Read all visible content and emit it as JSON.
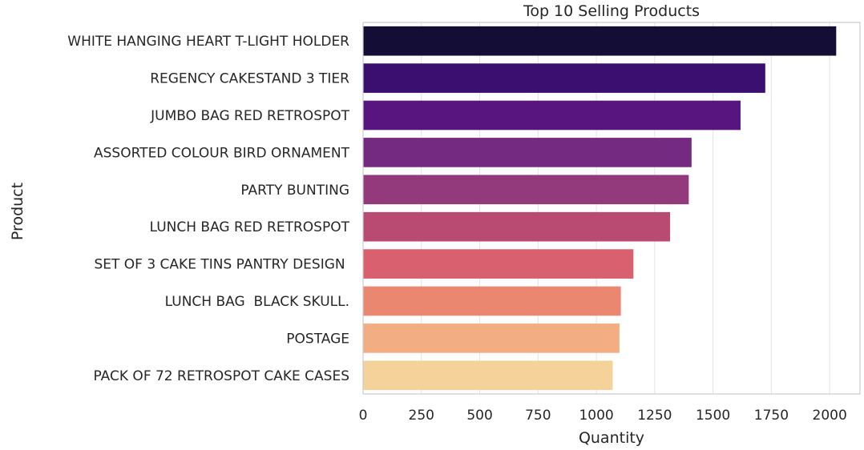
{
  "chart_data": {
    "type": "bar",
    "orientation": "horizontal",
    "title": "Top 10 Selling Products",
    "xlabel": "Quantity",
    "ylabel": "Product",
    "xlim": [
      0,
      2130
    ],
    "xticks": [
      0,
      250,
      500,
      750,
      1000,
      1250,
      1500,
      1750,
      2000
    ],
    "grid": true,
    "categories": [
      "WHITE HANGING HEART T-LIGHT HOLDER",
      "REGENCY CAKESTAND 3 TIER",
      "JUMBO BAG RED RETROSPOT",
      "ASSORTED COLOUR BIRD ORNAMENT",
      "PARTY BUNTING",
      "LUNCH BAG RED RETROSPOT",
      "SET OF 3 CAKE TINS PANTRY DESIGN ",
      "LUNCH BAG  BLACK SKULL.",
      "POSTAGE",
      "PACK OF 72 RETROSPOT CAKE CASES"
    ],
    "values": [
      2028,
      1724,
      1618,
      1408,
      1396,
      1316,
      1159,
      1105,
      1099,
      1070
    ],
    "colors": [
      "#140e36",
      "#3b0f70",
      "#58157f",
      "#752a82",
      "#933a7c",
      "#b94a72",
      "#d9606f",
      "#ea8771",
      "#f3ad82",
      "#f5d29a"
    ]
  }
}
